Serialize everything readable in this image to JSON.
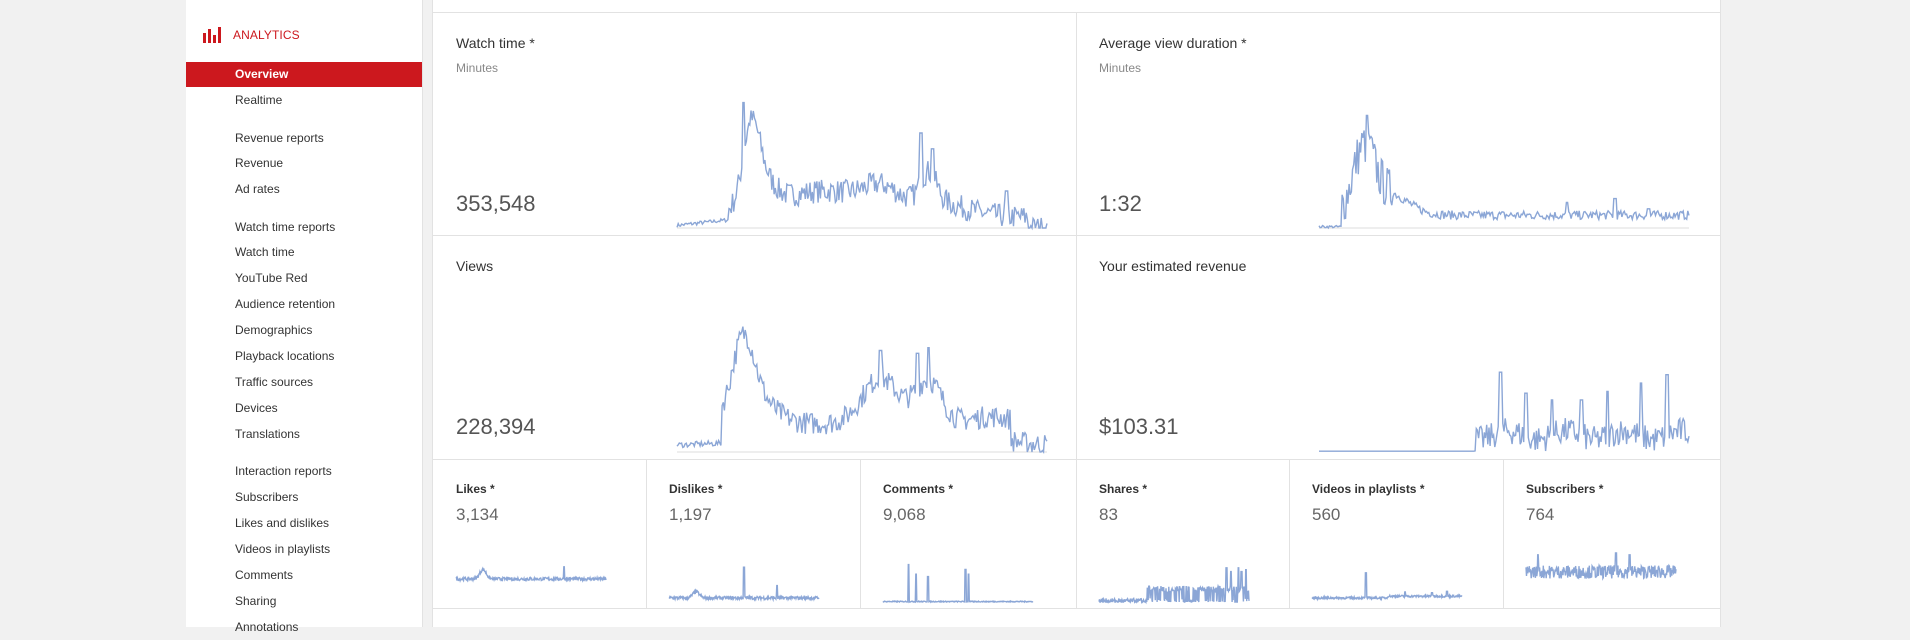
{
  "brand": {
    "label": "ANALYTICS",
    "color": "#cc181e",
    "icon": "bar-chart-icon"
  },
  "nav": {
    "overview": "Overview",
    "realtime": "Realtime",
    "revenue_reports": "Revenue reports",
    "revenue": "Revenue",
    "ad_rates": "Ad rates",
    "watch_time_reports": "Watch time reports",
    "watch_time": "Watch time",
    "youtube_red": "YouTube Red",
    "audience_retention": "Audience retention",
    "demographics": "Demographics",
    "playback_locations": "Playback locations",
    "traffic_sources": "Traffic sources",
    "devices": "Devices",
    "translations": "Translations",
    "interaction_reports": "Interaction reports",
    "subscribers": "Subscribers",
    "likes_dislikes": "Likes and dislikes",
    "videos_in_playlists": "Videos in playlists",
    "comments": "Comments",
    "sharing": "Sharing",
    "annotations": "Annotations"
  },
  "cards": {
    "watch_time": {
      "title": "Watch time *",
      "sub": "Minutes",
      "value": "353,548"
    },
    "avg_view": {
      "title": "Average view duration *",
      "sub": "Minutes",
      "value": "1:32"
    },
    "views": {
      "title": "Views",
      "value": "228,394"
    },
    "revenue": {
      "title": "Your estimated revenue",
      "value": "$103.31"
    }
  },
  "small_cards": {
    "likes": {
      "title": "Likes *",
      "value": "3,134"
    },
    "dislikes": {
      "title": "Dislikes *",
      "value": "1,197"
    },
    "comments": {
      "title": "Comments *",
      "value": "9,068"
    },
    "shares": {
      "title": "Shares *",
      "value": "83"
    },
    "playlists": {
      "title": "Videos in playlists *",
      "value": "560"
    },
    "subscribers": {
      "title": "Subscribers *",
      "value": "764"
    }
  },
  "colors": {
    "sparkline": "#8ba6d6",
    "active_nav": "#cc181e",
    "baseline": "#dddddd"
  }
}
